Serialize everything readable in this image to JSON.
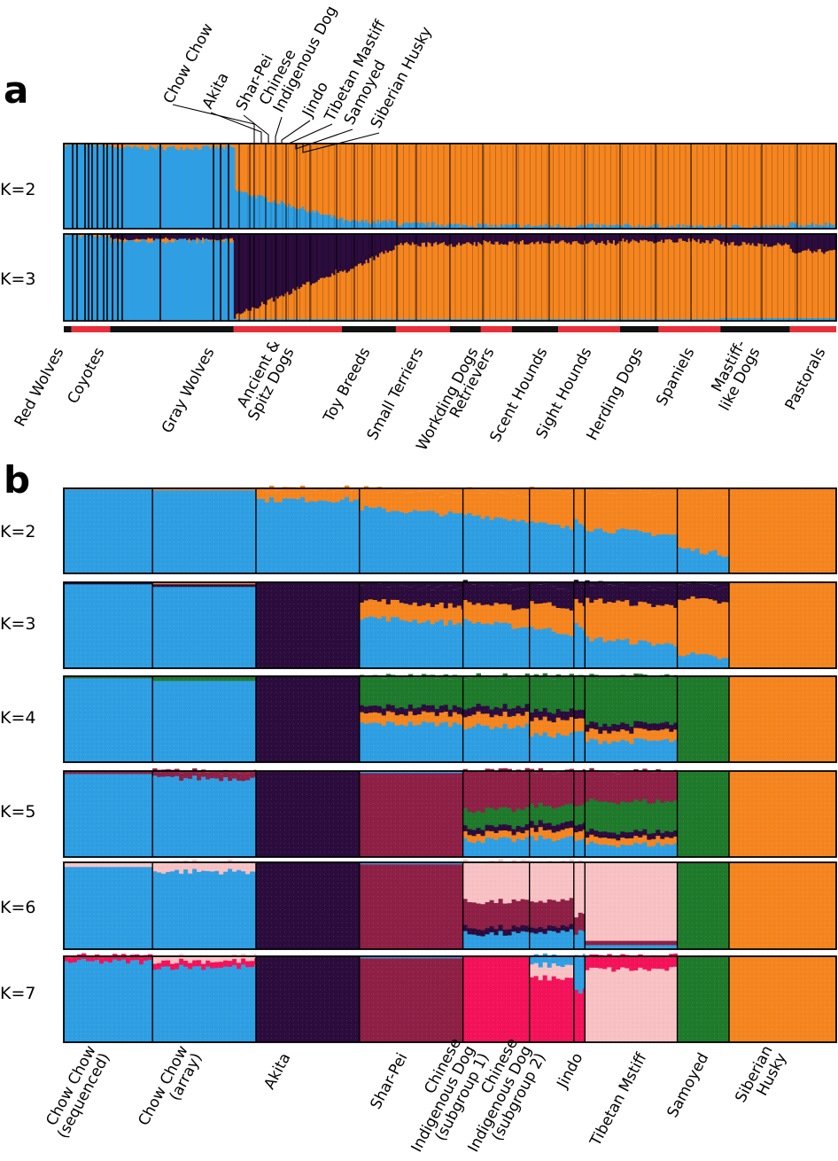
{
  "colors": {
    "blue": "#2f9fe3",
    "orange": "#f5851f",
    "purple": "#2b0c3d",
    "green": "#1f7a2c",
    "maroon": "#8e2046",
    "pink": "#f8c2c4",
    "red": "#f4125a",
    "stripe_red": "#e8303a",
    "stripe_black": "#111111"
  },
  "panel_a": {
    "label": "a",
    "top_breed_labels": [
      "Chow Chow",
      "Akita",
      "Shar-Pei",
      "Chinese\nIndigenous Dog",
      "Jindo",
      "Tibetan Mastiff",
      "Samoyed",
      "Siberian Husky"
    ],
    "group_labels": [
      "Red Wolves",
      "Coyotes",
      "Gray Wolves",
      "Ancient &\nSpitz Dogs",
      "Toy Breeds",
      "Small Terriers",
      "Workding Dogs",
      "Retrievers",
      "Scent Hounds",
      "Sight Hounds",
      "Herding Dogs",
      "Spaniels",
      "Mastiff-\nlike Dogs",
      "Pastorals"
    ],
    "rows": [
      "K=2",
      "K=3"
    ]
  },
  "panel_b": {
    "label": "b",
    "group_labels": [
      "Chow Chow\n(sequenced)",
      "Chow Chow\n(array)",
      "Akita",
      "Shar-Pei",
      "Chinese\nIndigenous Dog\n(subgroup 1)",
      "Chinese\nIndigenous Dog\n(subgroup 2)",
      "Jindo",
      "Tibetan Mstiff",
      "Samoyed",
      "Siberian\nHusky"
    ],
    "rows": [
      "K=2",
      "K=3",
      "K=4",
      "K=5",
      "K=6",
      "K=7"
    ]
  },
  "chart_data": [
    {
      "type": "bar",
      "stacked": true,
      "panel": "a",
      "ylim": [
        0,
        1
      ],
      "description_of_axes": "ancestry proportion per individual",
      "components": {
        "K=2": [
          "blue",
          "orange"
        ],
        "K=3": [
          "blue",
          "purple",
          "orange"
        ]
      },
      "group_fraction_of_width": [
        0.01,
        0.05,
        0.16,
        0.14,
        0.07,
        0.07,
        0.04,
        0.04,
        0.06,
        0.08,
        0.05,
        0.08,
        0.09,
        0.06
      ],
      "series": [
        {
          "row": "K=2",
          "component": "blue",
          "group_mean": [
            0.99,
            0.98,
            0.95,
            0.3,
            0.08,
            0.05,
            0.04,
            0.03,
            0.03,
            0.03,
            0.03,
            0.02,
            0.02,
            0.05
          ]
        },
        {
          "row": "K=3",
          "component": "blue",
          "group_mean": [
            0.99,
            0.98,
            0.92,
            0.03,
            0.02,
            0.02,
            0.02,
            0.02,
            0.02,
            0.02,
            0.02,
            0.02,
            0.03,
            0.03
          ]
        },
        {
          "row": "K=3",
          "component": "purple",
          "group_mean": [
            0.0,
            0.01,
            0.07,
            0.72,
            0.25,
            0.12,
            0.12,
            0.1,
            0.1,
            0.1,
            0.08,
            0.08,
            0.12,
            0.2
          ]
        }
      ]
    },
    {
      "type": "bar",
      "stacked": true,
      "panel": "b",
      "ylim": [
        0,
        1
      ],
      "group_fraction_of_width": [
        0.12,
        0.14,
        0.14,
        0.14,
        0.09,
        0.06,
        0.015,
        0.125,
        0.07,
        0.145
      ],
      "groups": [
        "Chow Chow (sequenced)",
        "Chow Chow (array)",
        "Akita",
        "Shar-Pei",
        "Chinese Indigenous Dog (subgroup 1)",
        "Chinese Indigenous Dog (subgroup 2)",
        "Jindo",
        "Tibetan Mstiff",
        "Samoyed",
        "Siberian Husky"
      ],
      "rows": {
        "K=2": [
          [
            [
              "blue",
              0.99
            ],
            [
              "orange",
              0.01
            ]
          ],
          [
            [
              "blue",
              0.98
            ],
            [
              "orange",
              0.02
            ]
          ],
          [
            [
              "blue",
              0.87
            ],
            [
              "orange",
              0.13
            ]
          ],
          [
            [
              "blue",
              0.77
            ],
            [
              "orange",
              0.23
            ]
          ],
          [
            [
              "blue",
              0.7
            ],
            [
              "orange",
              0.3
            ]
          ],
          [
            [
              "blue",
              0.6
            ],
            [
              "orange",
              0.4
            ]
          ],
          [
            [
              "blue",
              0.65
            ],
            [
              "orange",
              0.35
            ]
          ],
          [
            [
              "blue",
              0.53
            ],
            [
              "orange",
              0.47
            ]
          ],
          [
            [
              "blue",
              0.3
            ],
            [
              "orange",
              0.7
            ]
          ],
          [
            [
              "blue",
              0.01
            ],
            [
              "orange",
              0.99
            ]
          ]
        ],
        "K=3": [
          [
            [
              "blue",
              0.98
            ],
            [
              "purple",
              0.02
            ],
            [
              "orange",
              0.0
            ]
          ],
          [
            [
              "blue",
              0.95
            ],
            [
              "purple",
              0.03
            ],
            [
              "orange",
              0.02
            ]
          ],
          [
            [
              "blue",
              0.0
            ],
            [
              "purple",
              1.0
            ],
            [
              "orange",
              0.0
            ]
          ],
          [
            [
              "blue",
              0.6
            ],
            [
              "orange",
              0.2
            ],
            [
              "purple",
              0.2
            ]
          ],
          [
            [
              "blue",
              0.55
            ],
            [
              "orange",
              0.22
            ],
            [
              "purple",
              0.23
            ]
          ],
          [
            [
              "blue",
              0.48
            ],
            [
              "orange",
              0.3
            ],
            [
              "purple",
              0.22
            ]
          ],
          [
            [
              "blue",
              0.5
            ],
            [
              "orange",
              0.28
            ],
            [
              "purple",
              0.22
            ]
          ],
          [
            [
              "blue",
              0.35
            ],
            [
              "orange",
              0.45
            ],
            [
              "purple",
              0.2
            ]
          ],
          [
            [
              "blue",
              0.18
            ],
            [
              "orange",
              0.65
            ],
            [
              "purple",
              0.17
            ]
          ],
          [
            [
              "blue",
              0.01
            ],
            [
              "orange",
              0.99
            ],
            [
              "purple",
              0.0
            ]
          ]
        ],
        "K=4": [
          [
            [
              "blue",
              0.98
            ],
            [
              "green",
              0.02
            ]
          ],
          [
            [
              "blue",
              0.95
            ],
            [
              "green",
              0.05
            ]
          ],
          [
            [
              "purple",
              1.0
            ]
          ],
          [
            [
              "blue",
              0.45
            ],
            [
              "orange",
              0.12
            ],
            [
              "purple",
              0.08
            ],
            [
              "green",
              0.35
            ]
          ],
          [
            [
              "blue",
              0.42
            ],
            [
              "orange",
              0.14
            ],
            [
              "purple",
              0.09
            ],
            [
              "green",
              0.35
            ]
          ],
          [
            [
              "blue",
              0.32
            ],
            [
              "orange",
              0.18
            ],
            [
              "purple",
              0.1
            ],
            [
              "green",
              0.4
            ]
          ],
          [
            [
              "blue",
              0.35
            ],
            [
              "orange",
              0.15
            ],
            [
              "purple",
              0.1
            ],
            [
              "green",
              0.4
            ]
          ],
          [
            [
              "blue",
              0.25
            ],
            [
              "orange",
              0.12
            ],
            [
              "purple",
              0.08
            ],
            [
              "green",
              0.55
            ]
          ],
          [
            [
              "green",
              1.0
            ]
          ],
          [
            [
              "orange",
              1.0
            ]
          ]
        ],
        "K=5": [
          [
            [
              "blue",
              0.97
            ],
            [
              "maroon",
              0.03
            ]
          ],
          [
            [
              "blue",
              0.92
            ],
            [
              "maroon",
              0.08
            ]
          ],
          [
            [
              "purple",
              1.0
            ]
          ],
          [
            [
              "maroon",
              0.98
            ],
            [
              "blue",
              0.02
            ]
          ],
          [
            [
              "blue",
              0.2
            ],
            [
              "orange",
              0.08
            ],
            [
              "purple",
              0.07
            ],
            [
              "green",
              0.2
            ],
            [
              "maroon",
              0.45
            ]
          ],
          [
            [
              "blue",
              0.22
            ],
            [
              "orange",
              0.1
            ],
            [
              "purple",
              0.08
            ],
            [
              "green",
              0.2
            ],
            [
              "maroon",
              0.4
            ]
          ],
          [
            [
              "blue",
              0.2
            ],
            [
              "orange",
              0.1
            ],
            [
              "purple",
              0.08
            ],
            [
              "green",
              0.22
            ],
            [
              "maroon",
              0.4
            ]
          ],
          [
            [
              "blue",
              0.15
            ],
            [
              "orange",
              0.08
            ],
            [
              "purple",
              0.07
            ],
            [
              "green",
              0.35
            ],
            [
              "maroon",
              0.35
            ]
          ],
          [
            [
              "green",
              1.0
            ]
          ],
          [
            [
              "orange",
              1.0
            ]
          ]
        ],
        "K=6": [
          [
            [
              "blue",
              0.95
            ],
            [
              "pink",
              0.05
            ]
          ],
          [
            [
              "blue",
              0.9
            ],
            [
              "pink",
              0.1
            ]
          ],
          [
            [
              "purple",
              1.0
            ]
          ],
          [
            [
              "maroon",
              0.98
            ],
            [
              "blue",
              0.02
            ]
          ],
          [
            [
              "blue",
              0.18
            ],
            [
              "purple",
              0.07
            ],
            [
              "maroon",
              0.3
            ],
            [
              "pink",
              0.45
            ]
          ],
          [
            [
              "blue",
              0.2
            ],
            [
              "purple",
              0.06
            ],
            [
              "maroon",
              0.3
            ],
            [
              "pink",
              0.44
            ]
          ],
          [
            [
              "blue",
              0.2
            ],
            [
              "maroon",
              0.2
            ],
            [
              "pink",
              0.6
            ]
          ],
          [
            [
              "blue",
              0.05
            ],
            [
              "maroon",
              0.05
            ],
            [
              "pink",
              0.9
            ]
          ],
          [
            [
              "green",
              1.0
            ]
          ],
          [
            [
              "orange",
              1.0
            ]
          ]
        ],
        "K=7": [
          [
            [
              "blue",
              0.94
            ],
            [
              "red",
              0.06
            ]
          ],
          [
            [
              "blue",
              0.88
            ],
            [
              "red",
              0.07
            ],
            [
              "pink",
              0.05
            ]
          ],
          [
            [
              "purple",
              1.0
            ]
          ],
          [
            [
              "maroon",
              0.98
            ],
            [
              "blue",
              0.02
            ]
          ],
          [
            [
              "red",
              1.0
            ]
          ],
          [
            [
              "red",
              0.75
            ],
            [
              "pink",
              0.15
            ],
            [
              "blue",
              0.1
            ]
          ],
          [
            [
              "red",
              0.6
            ],
            [
              "blue",
              0.4
            ]
          ],
          [
            [
              "pink",
              0.85
            ],
            [
              "red",
              0.15
            ]
          ],
          [
            [
              "green",
              1.0
            ]
          ],
          [
            [
              "orange",
              1.0
            ]
          ]
        ]
      }
    }
  ]
}
